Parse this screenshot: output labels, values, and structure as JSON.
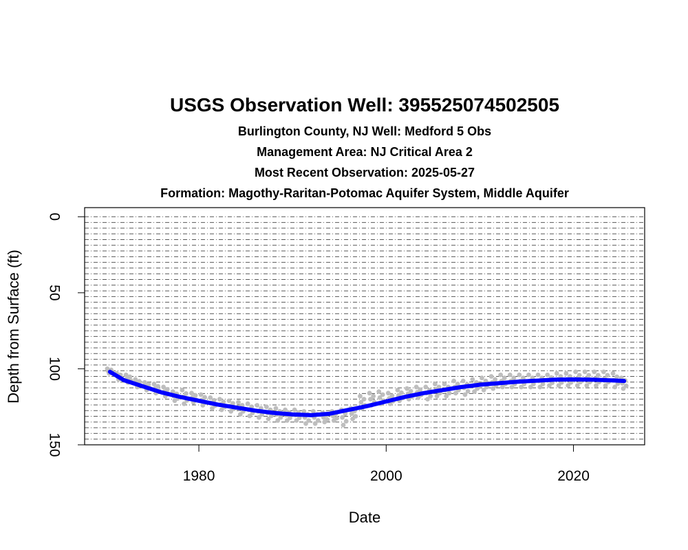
{
  "chart_data": {
    "type": "line",
    "title": "USGS Observation Well:  395525074502505",
    "subtitles": [
      "Burlington County, NJ   Well: Medford 5 Obs",
      "Management Area: NJ Critical Area 2",
      "Most Recent Observation: 2025-05-27",
      "Formation: Magothy-Raritan-Potomac Aquifer System, Middle Aquifer"
    ],
    "xlabel": "Date",
    "ylabel": "Depth from Surface (ft)",
    "xlim": [
      1967.8,
      2027.6
    ],
    "ylim": [
      150,
      -6
    ],
    "y_reversed": true,
    "x_ticks": [
      1980,
      2000,
      2020
    ],
    "y_ticks": [
      0,
      50,
      100,
      150
    ],
    "grid": {
      "horizontal": true,
      "interval": 3.75,
      "style": "dashed"
    },
    "colors": {
      "smooth_line": "#0000FF",
      "observations": "#BEBEBE",
      "grid": "#555555",
      "frame": "#000000"
    },
    "series": [
      {
        "role": "observations",
        "style": "dots",
        "x": [
          1970.5,
          1971.5,
          1972.5,
          1973.5,
          1974.5,
          1975.5,
          1976.5,
          1977.5,
          1978.5,
          1979.5,
          1980.5,
          1981.5,
          1982.5,
          1983.5,
          1984.5,
          1985.5,
          1986.5,
          1987.5,
          1988.5,
          1989.5,
          1990.5,
          1991.5,
          1992.5,
          1993.5,
          1994.5,
          1995.5,
          1996.5,
          1997.5,
          1998.5,
          1999.5,
          2000.5,
          2001.5,
          2002.5,
          2003.5,
          2004.5,
          2005.5,
          2006.5,
          2007.5,
          2008.5,
          2009.5,
          2010.5,
          2011.5,
          2012.5,
          2013.5,
          2014.5,
          2015.5,
          2016.5,
          2017.5,
          2018.5,
          2019.5,
          2020.5,
          2021.5,
          2022.5,
          2023.5,
          2024.5,
          2025.4
        ],
        "y_high": [
          100,
          103,
          104,
          107,
          109,
          110,
          112,
          115,
          114,
          116,
          117,
          119,
          120,
          121,
          122,
          123,
          124,
          125,
          126,
          127,
          127,
          128,
          128,
          129,
          128,
          127,
          126,
          118,
          116,
          115,
          116,
          114,
          113,
          112,
          112,
          110,
          110,
          108,
          108,
          107,
          106,
          105,
          104,
          104,
          104,
          104,
          104,
          104,
          103,
          103,
          102,
          102,
          102,
          102,
          103,
          106
        ],
        "y_low": [
          103,
          107,
          109,
          112,
          114,
          116,
          118,
          121,
          123,
          122,
          124,
          126,
          127,
          128,
          130,
          131,
          132,
          133,
          134,
          134,
          134,
          136,
          136,
          135,
          134,
          137,
          133,
          126,
          124,
          123,
          123,
          121,
          120,
          119,
          120,
          118,
          118,
          116,
          117,
          115,
          114,
          113,
          112,
          112,
          112,
          112,
          112,
          111,
          111,
          111,
          111,
          111,
          111,
          111,
          112,
          113
        ]
      },
      {
        "role": "smoothed-trend",
        "style": "line",
        "x": [
          1970.5,
          1972,
          1974,
          1976,
          1978,
          1980,
          1982,
          1984,
          1986,
          1988,
          1990,
          1992,
          1994,
          1996,
          1998,
          2000,
          2002,
          2004,
          2006,
          2008,
          2010,
          2012,
          2014,
          2016,
          2018,
          2020,
          2022,
          2024,
          2025.4
        ],
        "y": [
          102,
          107.5,
          111.5,
          115.5,
          118.5,
          121,
          123.5,
          125.5,
          127.5,
          129,
          130,
          130.5,
          129.5,
          127,
          124.5,
          121.5,
          118.5,
          116,
          114,
          112,
          110.5,
          109.5,
          108.5,
          107.8,
          107.2,
          107,
          107.2,
          107.6,
          108
        ]
      }
    ]
  }
}
